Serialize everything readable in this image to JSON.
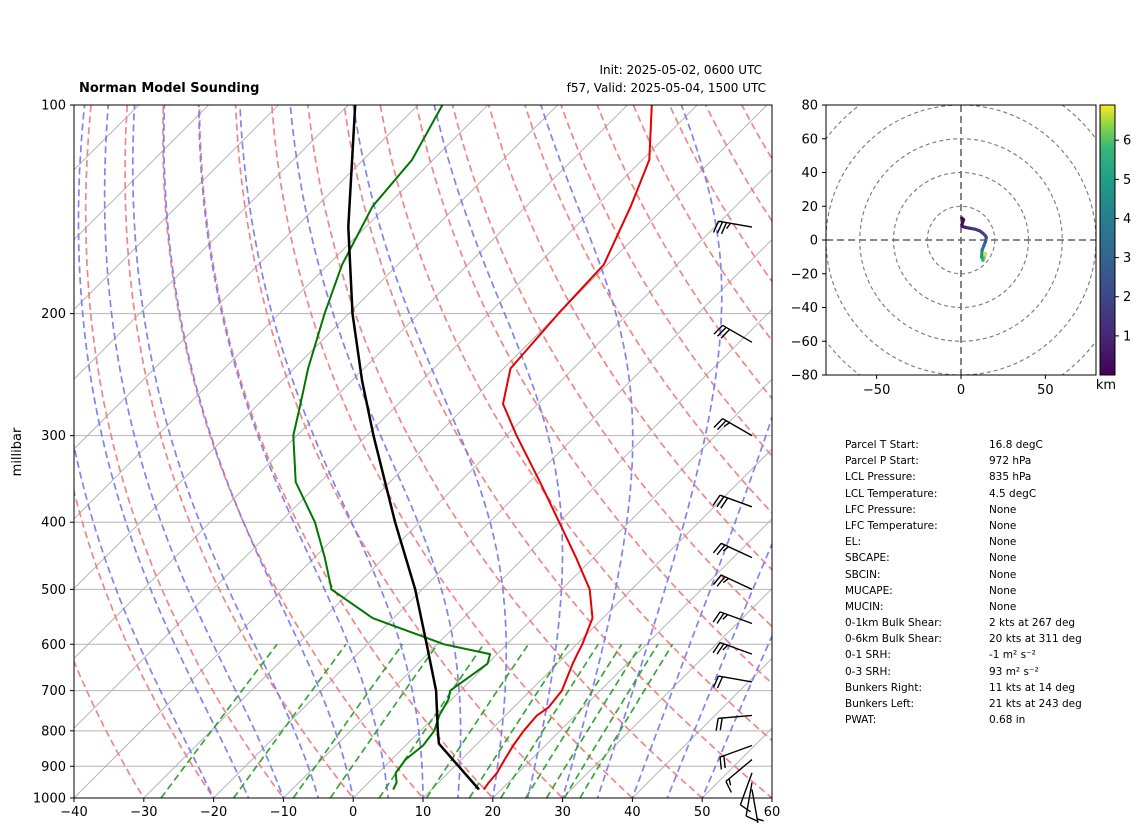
{
  "chart_data": [
    {
      "type": "skew-t log-p sounding",
      "title": "Norman Model Sounding",
      "init_label": "Init: 2025-05-02, 0600 UTC",
      "valid_label": "f57, Valid: 2025-05-04, 1500 UTC",
      "ylabel": "millibar",
      "xlabel": "",
      "xlim": [
        -40,
        60
      ],
      "ylim": [
        1000,
        100
      ],
      "y_scale": "log",
      "x_ticks": [
        -40,
        -30,
        -20,
        -10,
        0,
        10,
        20,
        30,
        40,
        50,
        60
      ],
      "y_ticks": [
        1000,
        900,
        800,
        700,
        600,
        500,
        400,
        300,
        200,
        100
      ],
      "grid": true,
      "colors": {
        "temperature": "#e60000",
        "dewpoint": "#007700",
        "parcel": "#000000",
        "dry_adiabats": "#f08080",
        "moist_adiabats": "#7b7bef",
        "mixing_ratio": "#2ca02c",
        "isotherms": "#b4b4b4"
      },
      "temperature": {
        "p": [
          972,
          950,
          920,
          880,
          840,
          800,
          760,
          740,
          700,
          660,
          640,
          620,
          600,
          550,
          500,
          450,
          400,
          350,
          300,
          270,
          240,
          200,
          170,
          140,
          120,
          100
        ],
        "t": [
          17.5,
          17.2,
          17.0,
          16.2,
          15.4,
          14.8,
          14.5,
          15.0,
          14.5,
          13.0,
          12.2,
          11.5,
          10.8,
          8.5,
          4.0,
          -2.5,
          -10.0,
          -18.5,
          -28.5,
          -35.0,
          -39.0,
          -40.0,
          -40.5,
          -45.0,
          -49.0,
          -56.5
        ]
      },
      "dewpoint": {
        "p": [
          972,
          950,
          920,
          880,
          840,
          800,
          760,
          720,
          700,
          660,
          640,
          620,
          600,
          550,
          500,
          450,
          400,
          350,
          300,
          270,
          240,
          200,
          170,
          140,
          120,
          100
        ],
        "t": [
          4.5,
          4.0,
          2.5,
          2.0,
          2.5,
          2.0,
          0.5,
          -0.5,
          -1.5,
          -0.5,
          0.0,
          -1.0,
          -9.0,
          -23.0,
          -33.0,
          -38.5,
          -45.0,
          -53.5,
          -60.5,
          -64.0,
          -68.0,
          -73.5,
          -78.0,
          -82.0,
          -83.0,
          -86.5
        ]
      },
      "parcel": {
        "p": [
          972,
          835,
          800,
          700,
          600,
          500,
          400,
          300,
          250,
          200,
          150,
          100
        ],
        "t": [
          16.8,
          4.5,
          2.5,
          -3.5,
          -11.5,
          -21.0,
          -33.5,
          -49.0,
          -58.5,
          -69.5,
          -82.5,
          -99.0
        ]
      },
      "wind_barbs": [
        {
          "p": 972,
          "speed_kt": 5,
          "dir_deg": 170
        },
        {
          "p": 950,
          "speed_kt": 8,
          "dir_deg": 190
        },
        {
          "p": 920,
          "speed_kt": 12,
          "dir_deg": 200
        },
        {
          "p": 880,
          "speed_kt": 15,
          "dir_deg": 230
        },
        {
          "p": 840,
          "speed_kt": 18,
          "dir_deg": 250
        },
        {
          "p": 760,
          "speed_kt": 20,
          "dir_deg": 265
        },
        {
          "p": 680,
          "speed_kt": 22,
          "dir_deg": 280
        },
        {
          "p": 620,
          "speed_kt": 25,
          "dir_deg": 290
        },
        {
          "p": 560,
          "speed_kt": 25,
          "dir_deg": 290
        },
        {
          "p": 500,
          "speed_kt": 25,
          "dir_deg": 295
        },
        {
          "p": 450,
          "speed_kt": 25,
          "dir_deg": 295
        },
        {
          "p": 380,
          "speed_kt": 30,
          "dir_deg": 290
        },
        {
          "p": 300,
          "speed_kt": 25,
          "dir_deg": 300
        },
        {
          "p": 220,
          "speed_kt": 30,
          "dir_deg": 300
        },
        {
          "p": 150,
          "speed_kt": 35,
          "dir_deg": 280
        }
      ]
    },
    {
      "type": "hodograph",
      "xlim": [
        -80,
        80
      ],
      "ylim": [
        -80,
        80
      ],
      "x_ticks": [
        -50,
        0,
        50
      ],
      "y_ticks": [
        -80,
        -60,
        -40,
        -20,
        0,
        20,
        40,
        60,
        80
      ],
      "ring_spacing": 20,
      "colorbar_label": "km",
      "colorbar_ticks": [
        1,
        2,
        3,
        4,
        5,
        6
      ],
      "colorbar_range": [
        0,
        6.9
      ],
      "colormap": "viridis",
      "points": {
        "u": [
          14.5,
          13.8,
          13.0,
          12.2,
          12.5,
          13.5,
          14.5,
          15.0,
          14.5,
          13.0,
          11.0,
          8.0,
          5.0,
          2.5,
          1.0,
          0.5,
          1.5,
          0.5
        ],
        "v": [
          -8.0,
          -10.5,
          -12.0,
          -10.0,
          -6.0,
          -3.5,
          -1.0,
          1.5,
          2.5,
          4.0,
          5.5,
          6.5,
          7.0,
          7.5,
          8.0,
          9.0,
          12.0,
          13.0
        ],
        "h_km": [
          6.9,
          6.2,
          5.5,
          4.5,
          3.5,
          2.8,
          2.4,
          2.1,
          1.8,
          1.6,
          1.4,
          1.2,
          1.0,
          0.8,
          0.6,
          0.4,
          0.2,
          0.0
        ]
      }
    }
  ],
  "stats": [
    {
      "label": "Parcel T Start:",
      "value": "16.8 degC"
    },
    {
      "label": "Parcel P Start:",
      "value": "972 hPa"
    },
    {
      "label": "LCL Pressure:",
      "value": "835 hPa"
    },
    {
      "label": "LCL Temperature:",
      "value": "4.5 degC"
    },
    {
      "label": "LFC Pressure:",
      "value": "None"
    },
    {
      "label": "LFC Temperature:",
      "value": "None"
    },
    {
      "label": "EL:",
      "value": "None"
    },
    {
      "label": "SBCAPE:",
      "value": "None"
    },
    {
      "label": "SBCIN:",
      "value": "None"
    },
    {
      "label": "MUCAPE:",
      "value": "None"
    },
    {
      "label": "MUCIN:",
      "value": "None"
    },
    {
      "label": "0-1km Bulk Shear:",
      "value": "2 kts at 267 deg"
    },
    {
      "label": "0-6km Bulk Shear:",
      "value": "20 kts at 311 deg"
    },
    {
      "label": "0-1 SRH:",
      "value": "-1 m² s⁻²"
    },
    {
      "label": "0-3 SRH:",
      "value": "93 m² s⁻²"
    },
    {
      "label": "Bunkers Right:",
      "value": "11 kts at 14 deg"
    },
    {
      "label": "Bunkers Left:",
      "value": "21 kts at 243 deg"
    },
    {
      "label": "PWAT:",
      "value": "0.68 in"
    }
  ]
}
